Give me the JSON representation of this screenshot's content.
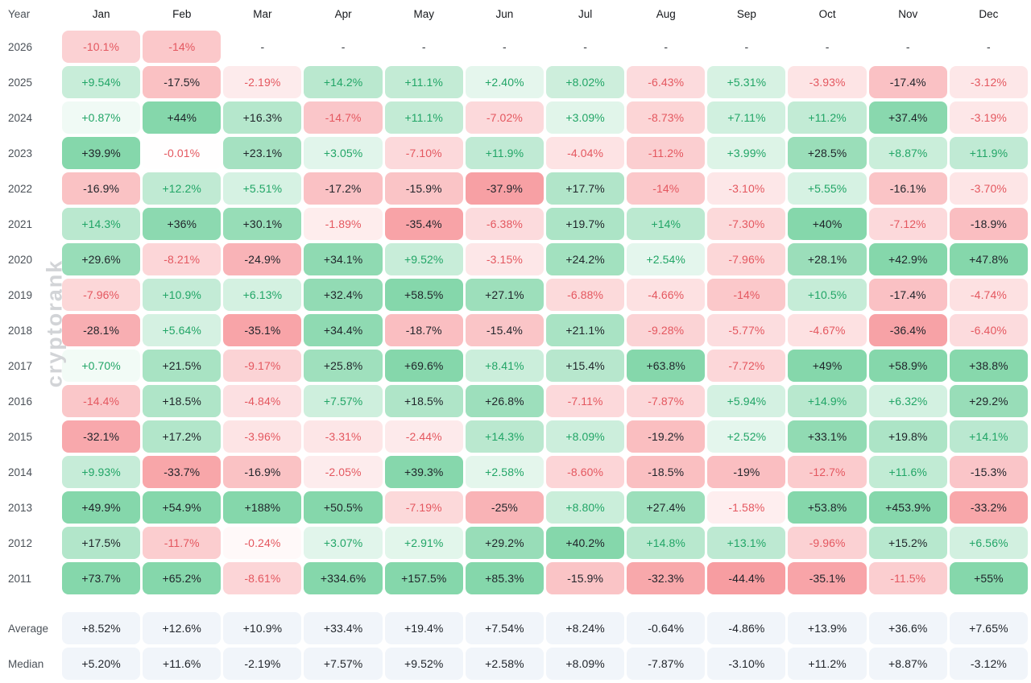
{
  "watermark": "cryptorank",
  "colors": {
    "positive_max": "#85d7ab",
    "negative_max": "#f79da1",
    "positive_text": "#21a566",
    "negative_text": "#e4575f",
    "dark_text": "#1f2329",
    "header_text": "#16181c",
    "year_text": "#4b5158",
    "dash_text": "#33373d",
    "summary_bg": "#f1f5fa",
    "summary_text": "#1f2329",
    "watermark_color": "#d2d4d7"
  },
  "table": {
    "year_header": "Year",
    "months": [
      "Jan",
      "Feb",
      "Mar",
      "Apr",
      "May",
      "Jun",
      "Jul",
      "Aug",
      "Sep",
      "Oct",
      "Nov",
      "Dec"
    ],
    "rows": [
      {
        "year": "2026",
        "cells": [
          "-10.1%",
          "-14%",
          "-",
          "-",
          "-",
          "-",
          "-",
          "-",
          "-",
          "-",
          "-",
          "-"
        ]
      },
      {
        "year": "2025",
        "cells": [
          "+9.54%",
          "-17.5%",
          "-2.19%",
          "+14.2%",
          "+11.1%",
          "+2.40%",
          "+8.02%",
          "-6.43%",
          "+5.31%",
          "-3.93%",
          "-17.4%",
          "-3.12%"
        ]
      },
      {
        "year": "2024",
        "cells": [
          "+0.87%",
          "+44%",
          "+16.3%",
          "-14.7%",
          "+11.1%",
          "-7.02%",
          "+3.09%",
          "-8.73%",
          "+7.11%",
          "+11.2%",
          "+37.4%",
          "-3.19%"
        ]
      },
      {
        "year": "2023",
        "cells": [
          "+39.9%",
          "-0.01%",
          "+23.1%",
          "+3.05%",
          "-7.10%",
          "+11.9%",
          "-4.04%",
          "-11.2%",
          "+3.99%",
          "+28.5%",
          "+8.87%",
          "+11.9%"
        ]
      },
      {
        "year": "2022",
        "cells": [
          "-16.9%",
          "+12.2%",
          "+5.51%",
          "-17.2%",
          "-15.9%",
          "-37.9%",
          "+17.7%",
          "-14%",
          "-3.10%",
          "+5.55%",
          "-16.1%",
          "-3.70%"
        ]
      },
      {
        "year": "2021",
        "cells": [
          "+14.3%",
          "+36%",
          "+30.1%",
          "-1.89%",
          "-35.4%",
          "-6.38%",
          "+19.7%",
          "+14%",
          "-7.30%",
          "+40%",
          "-7.12%",
          "-18.9%"
        ]
      },
      {
        "year": "2020",
        "cells": [
          "+29.6%",
          "-8.21%",
          "-24.9%",
          "+34.1%",
          "+9.52%",
          "-3.15%",
          "+24.2%",
          "+2.54%",
          "-7.96%",
          "+28.1%",
          "+42.9%",
          "+47.8%"
        ]
      },
      {
        "year": "2019",
        "cells": [
          "-7.96%",
          "+10.9%",
          "+6.13%",
          "+32.4%",
          "+58.5%",
          "+27.1%",
          "-6.88%",
          "-4.66%",
          "-14%",
          "+10.5%",
          "-17.4%",
          "-4.74%"
        ]
      },
      {
        "year": "2018",
        "cells": [
          "-28.1%",
          "+5.64%",
          "-35.1%",
          "+34.4%",
          "-18.7%",
          "-15.4%",
          "+21.1%",
          "-9.28%",
          "-5.77%",
          "-4.67%",
          "-36.4%",
          "-6.40%"
        ]
      },
      {
        "year": "2017",
        "cells": [
          "+0.70%",
          "+21.5%",
          "-9.17%",
          "+25.8%",
          "+69.6%",
          "+8.41%",
          "+15.4%",
          "+63.8%",
          "-7.72%",
          "+49%",
          "+58.9%",
          "+38.8%"
        ]
      },
      {
        "year": "2016",
        "cells": [
          "-14.4%",
          "+18.5%",
          "-4.84%",
          "+7.57%",
          "+18.5%",
          "+26.8%",
          "-7.11%",
          "-7.87%",
          "+5.94%",
          "+14.9%",
          "+6.32%",
          "+29.2%"
        ]
      },
      {
        "year": "2015",
        "cells": [
          "-32.1%",
          "+17.2%",
          "-3.96%",
          "-3.31%",
          "-2.44%",
          "+14.3%",
          "+8.09%",
          "-19.2%",
          "+2.52%",
          "+33.1%",
          "+19.8%",
          "+14.1%"
        ]
      },
      {
        "year": "2014",
        "cells": [
          "+9.93%",
          "-33.7%",
          "-16.9%",
          "-2.05%",
          "+39.3%",
          "+2.58%",
          "-8.60%",
          "-18.5%",
          "-19%",
          "-12.7%",
          "+11.6%",
          "-15.3%"
        ]
      },
      {
        "year": "2013",
        "cells": [
          "+49.9%",
          "+54.9%",
          "+188%",
          "+50.5%",
          "-7.19%",
          "-25%",
          "+8.80%",
          "+27.4%",
          "-1.58%",
          "+53.8%",
          "+453.9%",
          "-33.2%"
        ]
      },
      {
        "year": "2012",
        "cells": [
          "+17.5%",
          "-11.7%",
          "-0.24%",
          "+3.07%",
          "+2.91%",
          "+29.2%",
          "+40.2%",
          "+14.8%",
          "+13.1%",
          "-9.96%",
          "+15.2%",
          "+6.56%"
        ]
      },
      {
        "year": "2011",
        "cells": [
          "+73.7%",
          "+65.2%",
          "-8.61%",
          "+334.6%",
          "+157.5%",
          "+85.3%",
          "-15.9%",
          "-32.3%",
          "-44.4%",
          "-35.1%",
          "-11.5%",
          "+55%"
        ]
      }
    ],
    "summary_rows": [
      {
        "label": "Average",
        "cells": [
          "+8.52%",
          "+12.6%",
          "+10.9%",
          "+33.4%",
          "+19.4%",
          "+7.54%",
          "+8.24%",
          "-0.64%",
          "-4.86%",
          "+13.9%",
          "+36.6%",
          "+7.65%"
        ]
      },
      {
        "label": "Median",
        "cells": [
          "+5.20%",
          "+11.6%",
          "-2.19%",
          "+7.57%",
          "+9.52%",
          "+2.58%",
          "+8.09%",
          "-7.87%",
          "-3.10%",
          "+11.2%",
          "+8.87%",
          "-3.12%"
        ]
      }
    ]
  },
  "chart_data": {
    "type": "heatmap",
    "x_labels": [
      "Jan",
      "Feb",
      "Mar",
      "Apr",
      "May",
      "Jun",
      "Jul",
      "Aug",
      "Sep",
      "Oct",
      "Nov",
      "Dec"
    ],
    "y_labels": [
      "2026",
      "2025",
      "2024",
      "2023",
      "2022",
      "2021",
      "2020",
      "2019",
      "2018",
      "2017",
      "2016",
      "2015",
      "2014",
      "2013",
      "2012",
      "2011"
    ],
    "unit": "percent_monthly_return",
    "values": [
      [
        -10.1,
        -14,
        null,
        null,
        null,
        null,
        null,
        null,
        null,
        null,
        null,
        null
      ],
      [
        9.54,
        -17.5,
        -2.19,
        14.2,
        11.1,
        2.4,
        8.02,
        -6.43,
        5.31,
        -3.93,
        -17.4,
        -3.12
      ],
      [
        0.87,
        44,
        16.3,
        -14.7,
        11.1,
        -7.02,
        3.09,
        -8.73,
        7.11,
        11.2,
        37.4,
        -3.19
      ],
      [
        39.9,
        -0.01,
        23.1,
        3.05,
        -7.1,
        11.9,
        -4.04,
        -11.2,
        3.99,
        28.5,
        8.87,
        11.9
      ],
      [
        -16.9,
        12.2,
        5.51,
        -17.2,
        -15.9,
        -37.9,
        17.7,
        -14,
        -3.1,
        5.55,
        -16.1,
        -3.7
      ],
      [
        14.3,
        36,
        30.1,
        -1.89,
        -35.4,
        -6.38,
        19.7,
        14,
        -7.3,
        40,
        -7.12,
        -18.9
      ],
      [
        29.6,
        -8.21,
        -24.9,
        34.1,
        9.52,
        -3.15,
        24.2,
        2.54,
        -7.96,
        28.1,
        42.9,
        47.8
      ],
      [
        -7.96,
        10.9,
        6.13,
        32.4,
        58.5,
        27.1,
        -6.88,
        -4.66,
        -14,
        10.5,
        -17.4,
        -4.74
      ],
      [
        -28.1,
        5.64,
        -35.1,
        34.4,
        -18.7,
        -15.4,
        21.1,
        -9.28,
        -5.77,
        -4.67,
        -36.4,
        -6.4
      ],
      [
        0.7,
        21.5,
        -9.17,
        25.8,
        69.6,
        8.41,
        15.4,
        63.8,
        -7.72,
        49,
        58.9,
        38.8
      ],
      [
        -14.4,
        18.5,
        -4.84,
        7.57,
        18.5,
        26.8,
        -7.11,
        -7.87,
        5.94,
        14.9,
        6.32,
        29.2
      ],
      [
        -32.1,
        17.2,
        -3.96,
        -3.31,
        -2.44,
        14.3,
        8.09,
        -19.2,
        2.52,
        33.1,
        19.8,
        14.1
      ],
      [
        9.93,
        -33.7,
        -16.9,
        -2.05,
        39.3,
        2.58,
        -8.6,
        -18.5,
        -19,
        -12.7,
        11.6,
        -15.3
      ],
      [
        49.9,
        54.9,
        188,
        50.5,
        -7.19,
        -25,
        8.8,
        27.4,
        -1.58,
        53.8,
        453.9,
        -33.2
      ],
      [
        17.5,
        -11.7,
        -0.24,
        3.07,
        2.91,
        29.2,
        40.2,
        14.8,
        13.1,
        -9.96,
        15.2,
        6.56
      ],
      [
        73.7,
        65.2,
        -8.61,
        334.6,
        157.5,
        85.3,
        -15.9,
        -32.3,
        -44.4,
        -35.1,
        -11.5,
        55
      ]
    ],
    "summary": {
      "Average": [
        8.52,
        12.6,
        10.9,
        33.4,
        19.4,
        7.54,
        8.24,
        -0.64,
        -4.86,
        13.9,
        36.6,
        7.65
      ],
      "Median": [
        5.2,
        11.6,
        -2.19,
        7.57,
        9.52,
        2.58,
        8.09,
        -7.87,
        -3.1,
        11.2,
        8.87,
        -3.12
      ]
    },
    "legend_position": "none",
    "grid": false
  }
}
